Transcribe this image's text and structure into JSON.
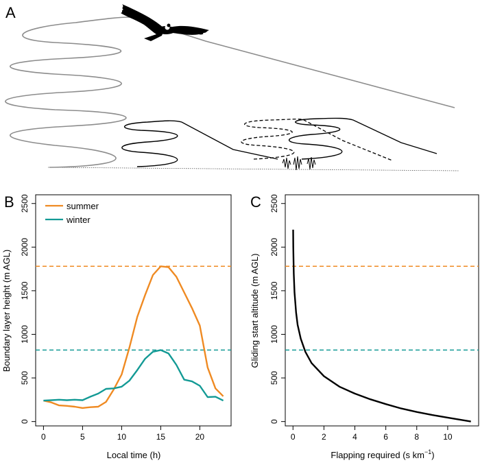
{
  "panel_letters": {
    "a": "A",
    "b": "B",
    "c": "C"
  },
  "colors": {
    "summer": "#ef8a22",
    "winter": "#139a95",
    "gray": "#8c8c8c",
    "black": "#000000"
  },
  "illustration": {
    "icon": "condor-silhouette-icon"
  },
  "chart_data": [
    {
      "type": "line",
      "panel": "B",
      "title": "",
      "xlabel": "Local time (h)",
      "ylabel": "Boundary layer height (m AGL)",
      "xlim": [
        -1,
        24
      ],
      "ylim": [
        -50,
        2600
      ],
      "xticks": [
        0,
        5,
        10,
        15,
        20
      ],
      "yticks": [
        0,
        500,
        1000,
        1500,
        2000,
        2500
      ],
      "grid": false,
      "legend_position": "top-left",
      "series": [
        {
          "name": "summer",
          "color": "#ef8a22",
          "x": [
            0,
            1,
            2,
            3,
            4,
            5,
            6,
            7,
            8,
            9,
            10,
            11,
            12,
            13,
            14,
            15,
            16,
            17,
            18,
            19,
            20,
            21,
            22,
            23
          ],
          "y": [
            240,
            220,
            185,
            180,
            170,
            155,
            165,
            170,
            225,
            370,
            540,
            850,
            1200,
            1450,
            1680,
            1780,
            1770,
            1660,
            1480,
            1300,
            1100,
            620,
            380,
            290
          ]
        },
        {
          "name": "winter",
          "color": "#139a95",
          "x": [
            0,
            1,
            2,
            3,
            4,
            5,
            6,
            7,
            8,
            9,
            10,
            11,
            12,
            13,
            14,
            15,
            16,
            17,
            18,
            19,
            20,
            21,
            22,
            23
          ],
          "y": [
            240,
            245,
            250,
            245,
            250,
            245,
            285,
            320,
            375,
            380,
            400,
            470,
            590,
            720,
            800,
            820,
            780,
            650,
            480,
            460,
            410,
            280,
            285,
            240
          ]
        }
      ],
      "reference_lines": [
        {
          "series": "summer",
          "y": 1780,
          "style": "dashed"
        },
        {
          "series": "winter",
          "y": 820,
          "style": "dashed"
        }
      ]
    },
    {
      "type": "line",
      "panel": "C",
      "title": "",
      "xlabel": "Flapping required (s km",
      "xlabel_superscript": "−1",
      "xlabel_suffix": ")",
      "ylabel": "Gliding start altitude (m AGL)",
      "xlim": [
        -0.5,
        12
      ],
      "ylim": [
        -50,
        2600
      ],
      "xticks": [
        0,
        2,
        4,
        6,
        8,
        10
      ],
      "yticks": [
        0,
        500,
        1000,
        1500,
        2000,
        2500
      ],
      "grid": false,
      "series": [
        {
          "color": "#000000",
          "x": [
            0.01,
            0.02,
            0.05,
            0.1,
            0.2,
            0.3,
            0.5,
            0.8,
            1.2,
            2,
            3,
            4,
            5,
            6,
            7,
            8,
            9,
            10,
            11,
            11.5
          ],
          "y": [
            2200,
            2000,
            1700,
            1480,
            1250,
            1110,
            950,
            800,
            670,
            520,
            400,
            320,
            255,
            200,
            150,
            110,
            75,
            45,
            15,
            0
          ]
        }
      ],
      "reference_lines": [
        {
          "series": "summer",
          "y": 1780,
          "style": "dashed"
        },
        {
          "series": "winter",
          "y": 820,
          "style": "dashed"
        }
      ]
    }
  ]
}
